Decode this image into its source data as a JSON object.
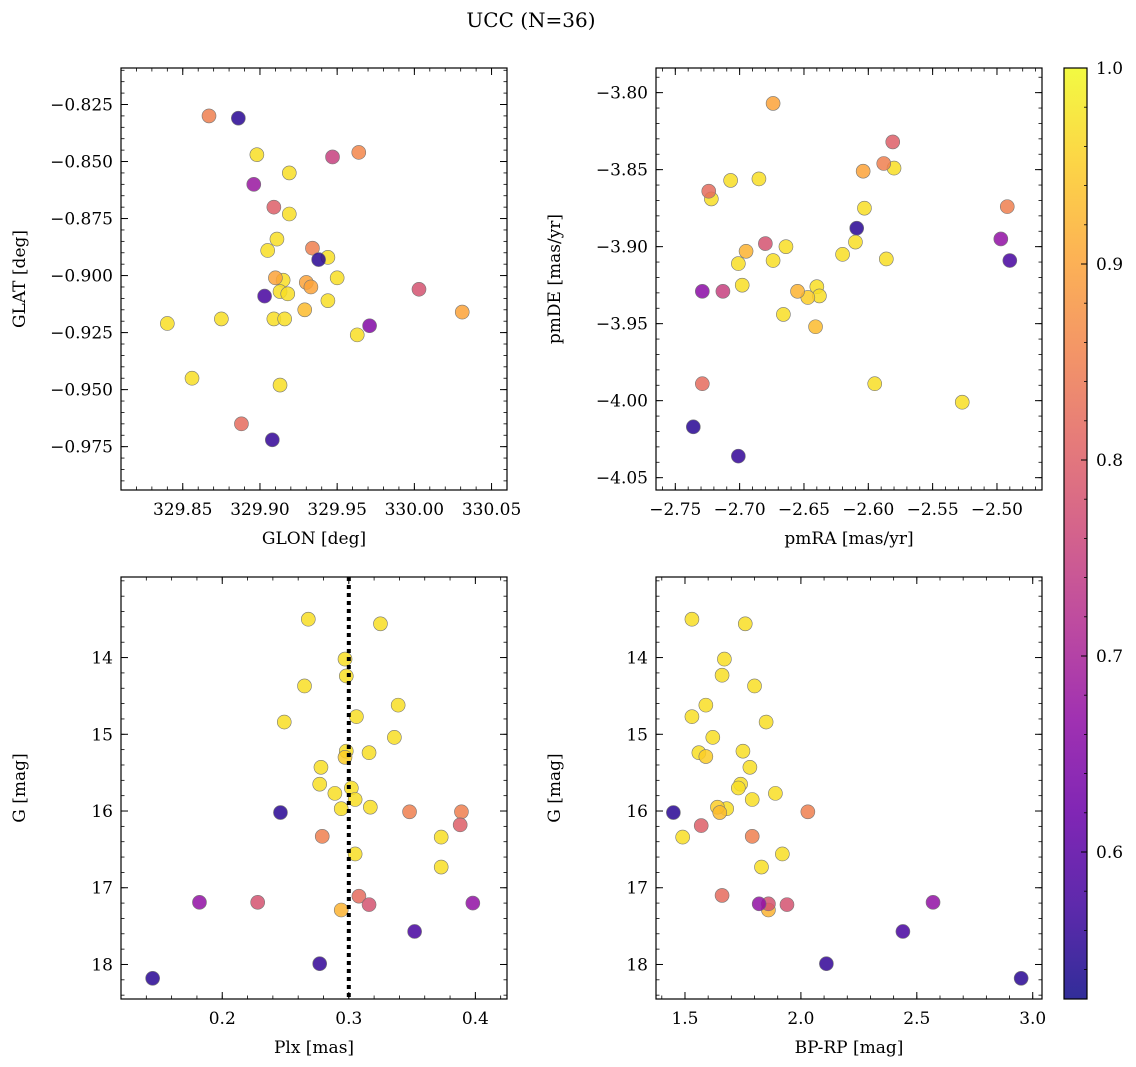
{
  "title": "UCC (N=36)",
  "colorbar": {
    "range": [
      0.525,
      1.0
    ],
    "ticks": [
      0.6,
      0.7,
      0.8,
      0.9,
      1.0
    ],
    "tick_labels": [
      "0.6",
      "0.7",
      "0.8",
      "0.9",
      "1.0"
    ],
    "colormap": "plasma"
  },
  "chart_data": [
    {
      "type": "scatter",
      "xlabel": "GLON [deg]",
      "ylabel": "GLAT [deg]",
      "xlim": [
        329.81,
        330.06
      ],
      "ylim": [
        -0.994,
        -0.809
      ],
      "xticks": [
        329.85,
        329.9,
        329.95,
        330.0,
        330.05
      ],
      "xtick_labels": [
        "329.85",
        "329.90",
        "329.95",
        "330.00",
        "330.05"
      ],
      "yticks": [
        -0.975,
        -0.95,
        -0.925,
        -0.9,
        -0.875,
        -0.85,
        -0.825
      ],
      "ytick_labels": [
        "−0.975",
        "−0.950",
        "−0.925",
        "−0.900",
        "−0.875",
        "−0.850",
        "−0.825"
      ],
      "points": [
        {
          "x": 329.867,
          "y": -0.83,
          "c": 0.85
        },
        {
          "x": 329.886,
          "y": -0.831,
          "c": 0.55
        },
        {
          "x": 329.898,
          "y": -0.847,
          "c": 0.97
        },
        {
          "x": 329.947,
          "y": -0.848,
          "c": 0.75
        },
        {
          "x": 329.964,
          "y": -0.846,
          "c": 0.86
        },
        {
          "x": 329.896,
          "y": -0.86,
          "c": 0.68
        },
        {
          "x": 329.919,
          "y": -0.855,
          "c": 0.97
        },
        {
          "x": 329.909,
          "y": -0.87,
          "c": 0.8
        },
        {
          "x": 329.919,
          "y": -0.873,
          "c": 0.97
        },
        {
          "x": 329.911,
          "y": -0.884,
          "c": 0.97
        },
        {
          "x": 329.905,
          "y": -0.889,
          "c": 0.97
        },
        {
          "x": 329.934,
          "y": -0.888,
          "c": 0.85
        },
        {
          "x": 329.938,
          "y": -0.893,
          "c": 0.55
        },
        {
          "x": 329.944,
          "y": -0.892,
          "c": 0.97
        },
        {
          "x": 329.91,
          "y": -0.901,
          "c": 0.9
        },
        {
          "x": 329.915,
          "y": -0.902,
          "c": 0.97
        },
        {
          "x": 329.95,
          "y": -0.901,
          "c": 0.97
        },
        {
          "x": 329.93,
          "y": -0.903,
          "c": 0.9
        },
        {
          "x": 329.933,
          "y": -0.905,
          "c": 0.9
        },
        {
          "x": 329.913,
          "y": -0.907,
          "c": 0.97
        },
        {
          "x": 329.918,
          "y": -0.908,
          "c": 0.97
        },
        {
          "x": 329.903,
          "y": -0.909,
          "c": 0.58
        },
        {
          "x": 330.003,
          "y": -0.906,
          "c": 0.78
        },
        {
          "x": 329.944,
          "y": -0.911,
          "c": 0.97
        },
        {
          "x": 329.929,
          "y": -0.915,
          "c": 0.93
        },
        {
          "x": 330.031,
          "y": -0.916,
          "c": 0.9
        },
        {
          "x": 329.875,
          "y": -0.919,
          "c": 0.97
        },
        {
          "x": 329.909,
          "y": -0.919,
          "c": 0.97
        },
        {
          "x": 329.916,
          "y": -0.919,
          "c": 0.97
        },
        {
          "x": 329.84,
          "y": -0.921,
          "c": 0.97
        },
        {
          "x": 329.971,
          "y": -0.922,
          "c": 0.65
        },
        {
          "x": 329.963,
          "y": -0.926,
          "c": 0.97
        },
        {
          "x": 329.856,
          "y": -0.945,
          "c": 0.97
        },
        {
          "x": 329.913,
          "y": -0.948,
          "c": 0.97
        },
        {
          "x": 329.888,
          "y": -0.965,
          "c": 0.82
        },
        {
          "x": 329.908,
          "y": -0.972,
          "c": 0.56
        }
      ]
    },
    {
      "type": "scatter",
      "xlabel": "pmRA [mas/yr]",
      "ylabel": "pmDE [mas/yr]",
      "xlim": [
        -2.765,
        -2.465
      ],
      "ylim": [
        -4.058,
        -3.784
      ],
      "xticks": [
        -2.75,
        -2.7,
        -2.65,
        -2.6,
        -2.55,
        -2.5
      ],
      "xtick_labels": [
        "−2.75",
        "−2.70",
        "−2.65",
        "−2.60",
        "−2.55",
        "−2.50"
      ],
      "yticks": [
        -4.05,
        -4.0,
        -3.95,
        -3.9,
        -3.85,
        -3.8
      ],
      "ytick_labels": [
        "−4.05",
        "−4.00",
        "−3.95",
        "−3.90",
        "−3.85",
        "−3.80"
      ],
      "points": [
        {
          "x": -2.674,
          "y": -3.807,
          "c": 0.9
        },
        {
          "x": -2.581,
          "y": -3.832,
          "c": 0.8
        },
        {
          "x": -2.588,
          "y": -3.846,
          "c": 0.85
        },
        {
          "x": -2.604,
          "y": -3.851,
          "c": 0.9
        },
        {
          "x": -2.58,
          "y": -3.849,
          "c": 0.97
        },
        {
          "x": -2.707,
          "y": -3.857,
          "c": 0.97
        },
        {
          "x": -2.685,
          "y": -3.856,
          "c": 0.97
        },
        {
          "x": -2.724,
          "y": -3.864,
          "c": 0.82
        },
        {
          "x": -2.722,
          "y": -3.869,
          "c": 0.97
        },
        {
          "x": -2.492,
          "y": -3.874,
          "c": 0.85
        },
        {
          "x": -2.603,
          "y": -3.875,
          "c": 0.97
        },
        {
          "x": -2.609,
          "y": -3.888,
          "c": 0.55
        },
        {
          "x": -2.68,
          "y": -3.898,
          "c": 0.78
        },
        {
          "x": -2.61,
          "y": -3.897,
          "c": 0.97
        },
        {
          "x": -2.497,
          "y": -3.895,
          "c": 0.67
        },
        {
          "x": -2.664,
          "y": -3.9,
          "c": 0.97
        },
        {
          "x": -2.695,
          "y": -3.903,
          "c": 0.92
        },
        {
          "x": -2.62,
          "y": -3.905,
          "c": 0.97
        },
        {
          "x": -2.586,
          "y": -3.908,
          "c": 0.97
        },
        {
          "x": -2.674,
          "y": -3.909,
          "c": 0.97
        },
        {
          "x": -2.49,
          "y": -3.909,
          "c": 0.58
        },
        {
          "x": -2.701,
          "y": -3.911,
          "c": 0.97
        },
        {
          "x": -2.698,
          "y": -3.925,
          "c": 0.97
        },
        {
          "x": -2.64,
          "y": -3.926,
          "c": 0.97
        },
        {
          "x": -2.729,
          "y": -3.929,
          "c": 0.66
        },
        {
          "x": -2.713,
          "y": -3.929,
          "c": 0.75
        },
        {
          "x": -2.655,
          "y": -3.929,
          "c": 0.92
        },
        {
          "x": -2.647,
          "y": -3.933,
          "c": 0.95
        },
        {
          "x": -2.638,
          "y": -3.932,
          "c": 0.97
        },
        {
          "x": -2.666,
          "y": -3.944,
          "c": 0.97
        },
        {
          "x": -2.641,
          "y": -3.952,
          "c": 0.93
        },
        {
          "x": -2.595,
          "y": -3.989,
          "c": 0.97
        },
        {
          "x": -2.729,
          "y": -3.989,
          "c": 0.82
        },
        {
          "x": -2.527,
          "y": -4.001,
          "c": 0.97
        },
        {
          "x": -2.736,
          "y": -4.017,
          "c": 0.55
        },
        {
          "x": -2.701,
          "y": -4.036,
          "c": 0.56
        }
      ]
    },
    {
      "type": "scatter",
      "xlabel": "Plx [mas]",
      "ylabel": "G [mag]",
      "xlim": [
        0.12,
        0.425
      ],
      "ylim": [
        18.45,
        12.95
      ],
      "inverted_y": true,
      "vertical_line": {
        "x": 0.3,
        "style": "dotted",
        "color": "#000000"
      },
      "xticks": [
        0.2,
        0.3,
        0.4
      ],
      "xtick_labels": [
        "0.2",
        "0.3",
        "0.4"
      ],
      "yticks": [
        14,
        15,
        16,
        17,
        18
      ],
      "ytick_labels": [
        "14",
        "15",
        "16",
        "17",
        "18"
      ],
      "points": [
        {
          "x": 0.268,
          "y": 13.5,
          "c": 0.97
        },
        {
          "x": 0.325,
          "y": 13.56,
          "c": 0.97
        },
        {
          "x": 0.297,
          "y": 14.02,
          "c": 0.97
        },
        {
          "x": 0.298,
          "y": 14.24,
          "c": 0.97
        },
        {
          "x": 0.265,
          "y": 14.37,
          "c": 0.97
        },
        {
          "x": 0.339,
          "y": 14.62,
          "c": 0.97
        },
        {
          "x": 0.306,
          "y": 14.77,
          "c": 0.97
        },
        {
          "x": 0.249,
          "y": 14.84,
          "c": 0.97
        },
        {
          "x": 0.336,
          "y": 15.04,
          "c": 0.97
        },
        {
          "x": 0.298,
          "y": 15.22,
          "c": 0.97
        },
        {
          "x": 0.316,
          "y": 15.24,
          "c": 0.97
        },
        {
          "x": 0.297,
          "y": 15.3,
          "c": 0.95
        },
        {
          "x": 0.278,
          "y": 15.43,
          "c": 0.97
        },
        {
          "x": 0.277,
          "y": 15.65,
          "c": 0.97
        },
        {
          "x": 0.302,
          "y": 15.7,
          "c": 0.97
        },
        {
          "x": 0.289,
          "y": 15.77,
          "c": 0.97
        },
        {
          "x": 0.305,
          "y": 15.85,
          "c": 0.97
        },
        {
          "x": 0.294,
          "y": 15.97,
          "c": 0.97
        },
        {
          "x": 0.317,
          "y": 15.95,
          "c": 0.97
        },
        {
          "x": 0.246,
          "y": 16.02,
          "c": 0.55
        },
        {
          "x": 0.348,
          "y": 16.01,
          "c": 0.85
        },
        {
          "x": 0.389,
          "y": 16.01,
          "c": 0.85
        },
        {
          "x": 0.388,
          "y": 16.18,
          "c": 0.8
        },
        {
          "x": 0.279,
          "y": 16.33,
          "c": 0.85
        },
        {
          "x": 0.373,
          "y": 16.34,
          "c": 0.97
        },
        {
          "x": 0.305,
          "y": 16.56,
          "c": 0.97
        },
        {
          "x": 0.373,
          "y": 16.73,
          "c": 0.97
        },
        {
          "x": 0.308,
          "y": 17.11,
          "c": 0.82
        },
        {
          "x": 0.182,
          "y": 17.19,
          "c": 0.67
        },
        {
          "x": 0.228,
          "y": 17.19,
          "c": 0.78
        },
        {
          "x": 0.316,
          "y": 17.22,
          "c": 0.78
        },
        {
          "x": 0.398,
          "y": 17.2,
          "c": 0.67
        },
        {
          "x": 0.294,
          "y": 17.29,
          "c": 0.92
        },
        {
          "x": 0.352,
          "y": 17.57,
          "c": 0.58
        },
        {
          "x": 0.277,
          "y": 17.99,
          "c": 0.56
        },
        {
          "x": 0.145,
          "y": 18.18,
          "c": 0.55
        }
      ]
    },
    {
      "type": "scatter",
      "xlabel": "BP-RP [mag]",
      "ylabel": "G [mag]",
      "xlim": [
        1.375,
        3.04
      ],
      "ylim": [
        18.45,
        12.95
      ],
      "inverted_y": true,
      "xticks": [
        1.5,
        2.0,
        2.5,
        3.0
      ],
      "xtick_labels": [
        "1.5",
        "2.0",
        "2.5",
        "3.0"
      ],
      "yticks": [
        14,
        15,
        16,
        17,
        18
      ],
      "ytick_labels": [
        "14",
        "15",
        "16",
        "17",
        "18"
      ],
      "points": [
        {
          "x": 1.53,
          "y": 13.5,
          "c": 0.97
        },
        {
          "x": 1.76,
          "y": 13.56,
          "c": 0.97
        },
        {
          "x": 1.67,
          "y": 14.02,
          "c": 0.97
        },
        {
          "x": 1.66,
          "y": 14.23,
          "c": 0.97
        },
        {
          "x": 1.8,
          "y": 14.37,
          "c": 0.97
        },
        {
          "x": 1.59,
          "y": 14.62,
          "c": 0.97
        },
        {
          "x": 1.53,
          "y": 14.77,
          "c": 0.97
        },
        {
          "x": 1.85,
          "y": 14.84,
          "c": 0.97
        },
        {
          "x": 1.62,
          "y": 15.04,
          "c": 0.97
        },
        {
          "x": 1.56,
          "y": 15.24,
          "c": 0.97
        },
        {
          "x": 1.75,
          "y": 15.22,
          "c": 0.97
        },
        {
          "x": 1.59,
          "y": 15.29,
          "c": 0.95
        },
        {
          "x": 1.78,
          "y": 15.43,
          "c": 0.97
        },
        {
          "x": 1.74,
          "y": 15.65,
          "c": 0.97
        },
        {
          "x": 1.73,
          "y": 15.7,
          "c": 0.97
        },
        {
          "x": 1.89,
          "y": 15.77,
          "c": 0.97
        },
        {
          "x": 1.79,
          "y": 15.85,
          "c": 0.97
        },
        {
          "x": 1.64,
          "y": 15.95,
          "c": 0.95
        },
        {
          "x": 1.68,
          "y": 15.97,
          "c": 0.97
        },
        {
          "x": 1.65,
          "y": 16.02,
          "c": 0.93
        },
        {
          "x": 1.45,
          "y": 16.02,
          "c": 0.55
        },
        {
          "x": 2.03,
          "y": 16.01,
          "c": 0.85
        },
        {
          "x": 1.57,
          "y": 16.19,
          "c": 0.8
        },
        {
          "x": 1.49,
          "y": 16.34,
          "c": 0.97
        },
        {
          "x": 1.79,
          "y": 16.33,
          "c": 0.85
        },
        {
          "x": 1.92,
          "y": 16.56,
          "c": 0.97
        },
        {
          "x": 1.83,
          "y": 16.73,
          "c": 0.97
        },
        {
          "x": 1.66,
          "y": 17.1,
          "c": 0.82
        },
        {
          "x": 1.82,
          "y": 17.21,
          "c": 0.67
        },
        {
          "x": 1.86,
          "y": 17.21,
          "c": 0.78
        },
        {
          "x": 1.94,
          "y": 17.22,
          "c": 0.78
        },
        {
          "x": 1.86,
          "y": 17.29,
          "c": 0.92
        },
        {
          "x": 2.57,
          "y": 17.19,
          "c": 0.67
        },
        {
          "x": 2.44,
          "y": 17.57,
          "c": 0.58
        },
        {
          "x": 2.11,
          "y": 17.99,
          "c": 0.56
        },
        {
          "x": 2.95,
          "y": 18.18,
          "c": 0.55
        }
      ]
    }
  ]
}
